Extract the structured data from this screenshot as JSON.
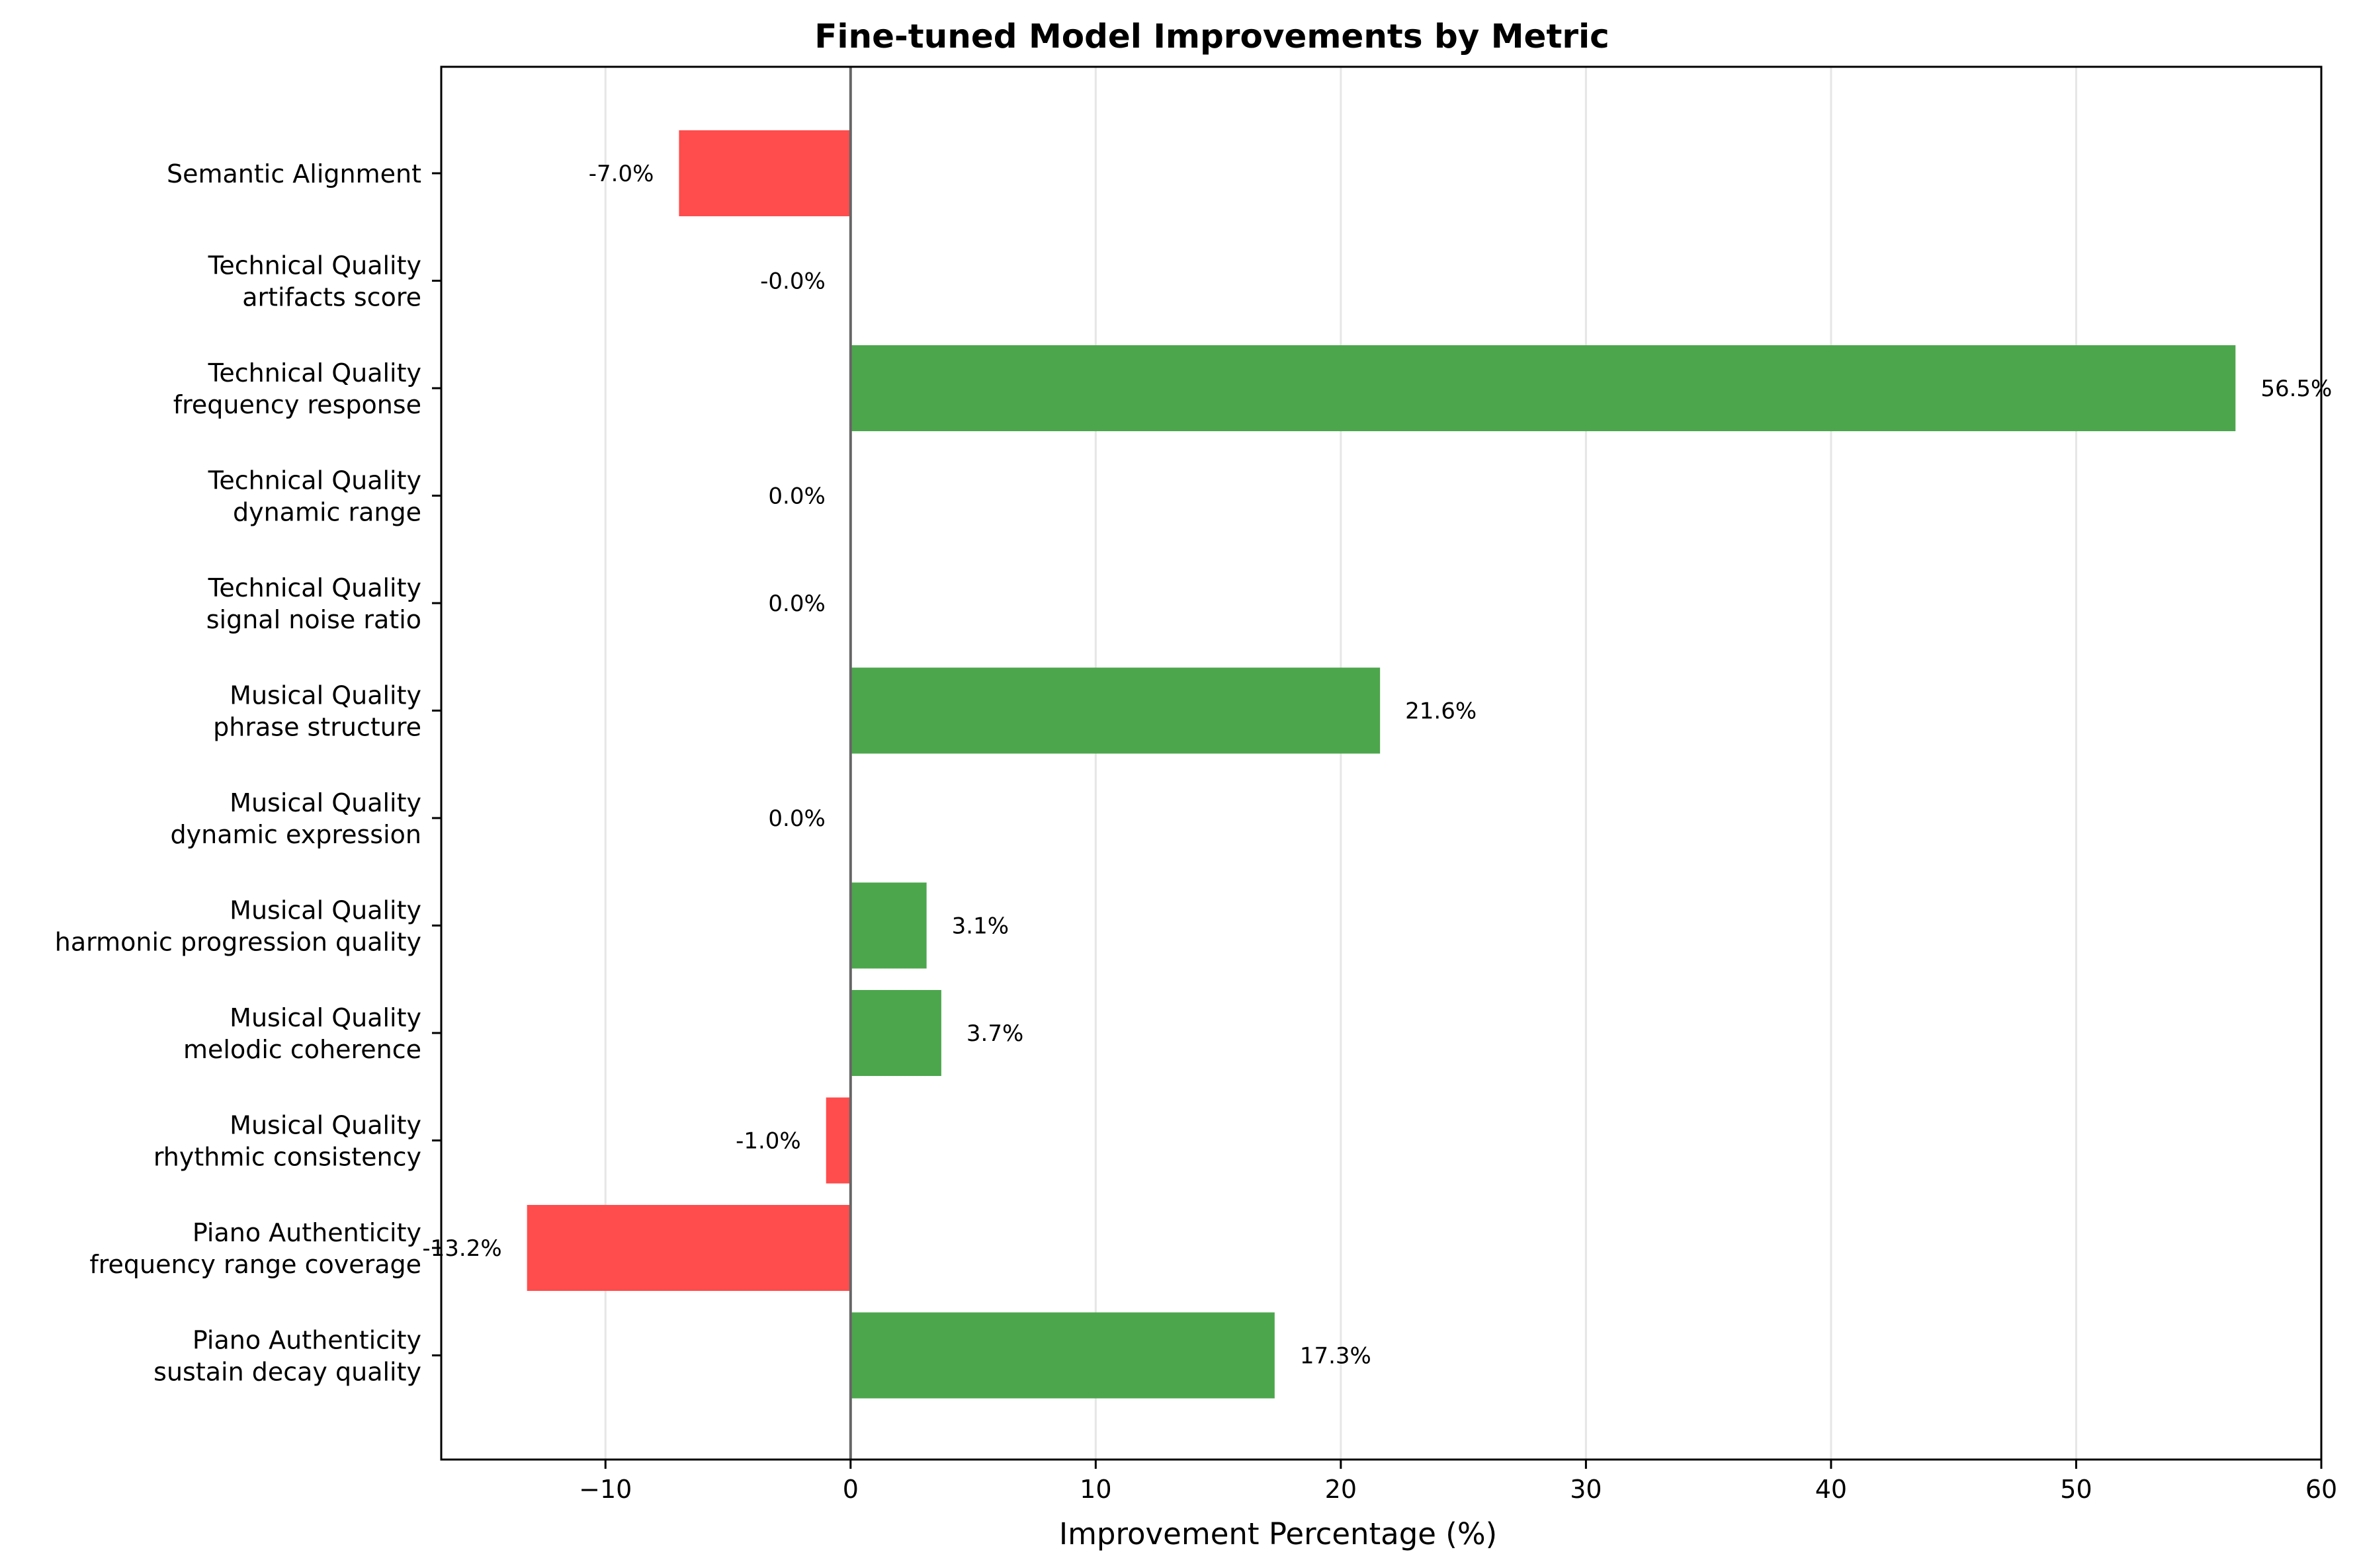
{
  "chart_data": {
    "type": "bar",
    "orientation": "horizontal",
    "title": "Fine-tuned Model Improvements by Metric",
    "xlabel": "Improvement Percentage (%)",
    "ylabel": "",
    "xlim": [
      -16.7,
      60
    ],
    "xticks": [
      {
        "value": -10,
        "label": "−10"
      },
      {
        "value": 0,
        "label": "0"
      },
      {
        "value": 10,
        "label": "10"
      },
      {
        "value": 20,
        "label": "20"
      },
      {
        "value": 30,
        "label": "30"
      },
      {
        "value": 40,
        "label": "40"
      },
      {
        "value": 50,
        "label": "50"
      },
      {
        "value": 60,
        "label": "60"
      }
    ],
    "grid": "x-major",
    "zero_line": true,
    "colors": {
      "positive": "#4ca64c",
      "negative": "#ff4c4c",
      "grid": "#e6e6e6",
      "zero_line": "#666666"
    },
    "categories": [
      {
        "line1": "Semantic Alignment",
        "line2": ""
      },
      {
        "line1": "Technical Quality",
        "line2": "artifacts score"
      },
      {
        "line1": "Technical Quality",
        "line2": "frequency response"
      },
      {
        "line1": "Technical Quality",
        "line2": "dynamic range"
      },
      {
        "line1": "Technical Quality",
        "line2": "signal noise ratio"
      },
      {
        "line1": "Musical Quality",
        "line2": "phrase structure"
      },
      {
        "line1": "Musical Quality",
        "line2": "dynamic expression"
      },
      {
        "line1": "Musical Quality",
        "line2": "harmonic progression quality"
      },
      {
        "line1": "Musical Quality",
        "line2": "melodic coherence"
      },
      {
        "line1": "Musical Quality",
        "line2": "rhythmic consistency"
      },
      {
        "line1": "Piano Authenticity",
        "line2": "frequency range coverage"
      },
      {
        "line1": "Piano Authenticity",
        "line2": "sustain decay quality"
      }
    ],
    "values": [
      -7.0,
      -0.0,
      56.5,
      0.0,
      0.0,
      21.6,
      0.0,
      3.1,
      3.7,
      -1.0,
      -13.2,
      17.3
    ],
    "value_labels": [
      "-7.0%",
      "-0.0%",
      "56.5%",
      "0.0%",
      "0.0%",
      "21.6%",
      "0.0%",
      "3.1%",
      "3.7%",
      "-1.0%",
      "-13.2%",
      "17.3%"
    ]
  }
}
